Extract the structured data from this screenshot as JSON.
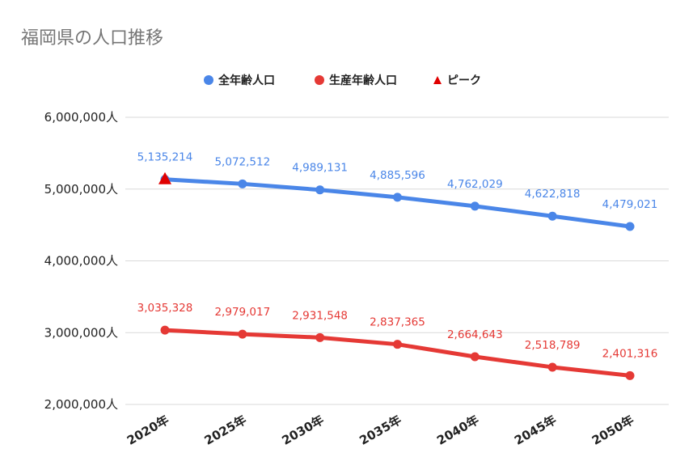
{
  "chart_data": {
    "type": "line",
    "title": "福岡県の人口推移",
    "categories": [
      "2020年",
      "2025年",
      "2030年",
      "2035年",
      "2040年",
      "2045年",
      "2050年"
    ],
    "ylim": [
      2000000,
      6000000
    ],
    "yticks": [
      "2,000,000人",
      "3,000,000人",
      "4,000,000人",
      "5,000,000人",
      "6,000,000人"
    ],
    "ytick_values": [
      2000000,
      3000000,
      4000000,
      5000000,
      6000000
    ],
    "grid": true,
    "legend_position": "top",
    "series": [
      {
        "name": "全年齢人口",
        "color": "#4a86e8",
        "values": [
          5135214,
          5072512,
          4989131,
          4885596,
          4762029,
          4622818,
          4479021
        ],
        "labels": [
          "5,135,214",
          "5,072,512",
          "4,989,131",
          "4,885,596",
          "4,762,029",
          "4,622,818",
          "4,479,021"
        ]
      },
      {
        "name": "生産年齢人口",
        "color": "#e53935",
        "values": [
          3035328,
          2979017,
          2931548,
          2837365,
          2664643,
          2518789,
          2401316
        ],
        "labels": [
          "3,035,328",
          "2,979,017",
          "2,931,548",
          "2,837,365",
          "2,664,643",
          "2,518,789",
          "2,401,316"
        ]
      }
    ],
    "peak": {
      "name": "ピーク",
      "color": "#e00000",
      "category": "2020年",
      "value": 5135214
    }
  }
}
